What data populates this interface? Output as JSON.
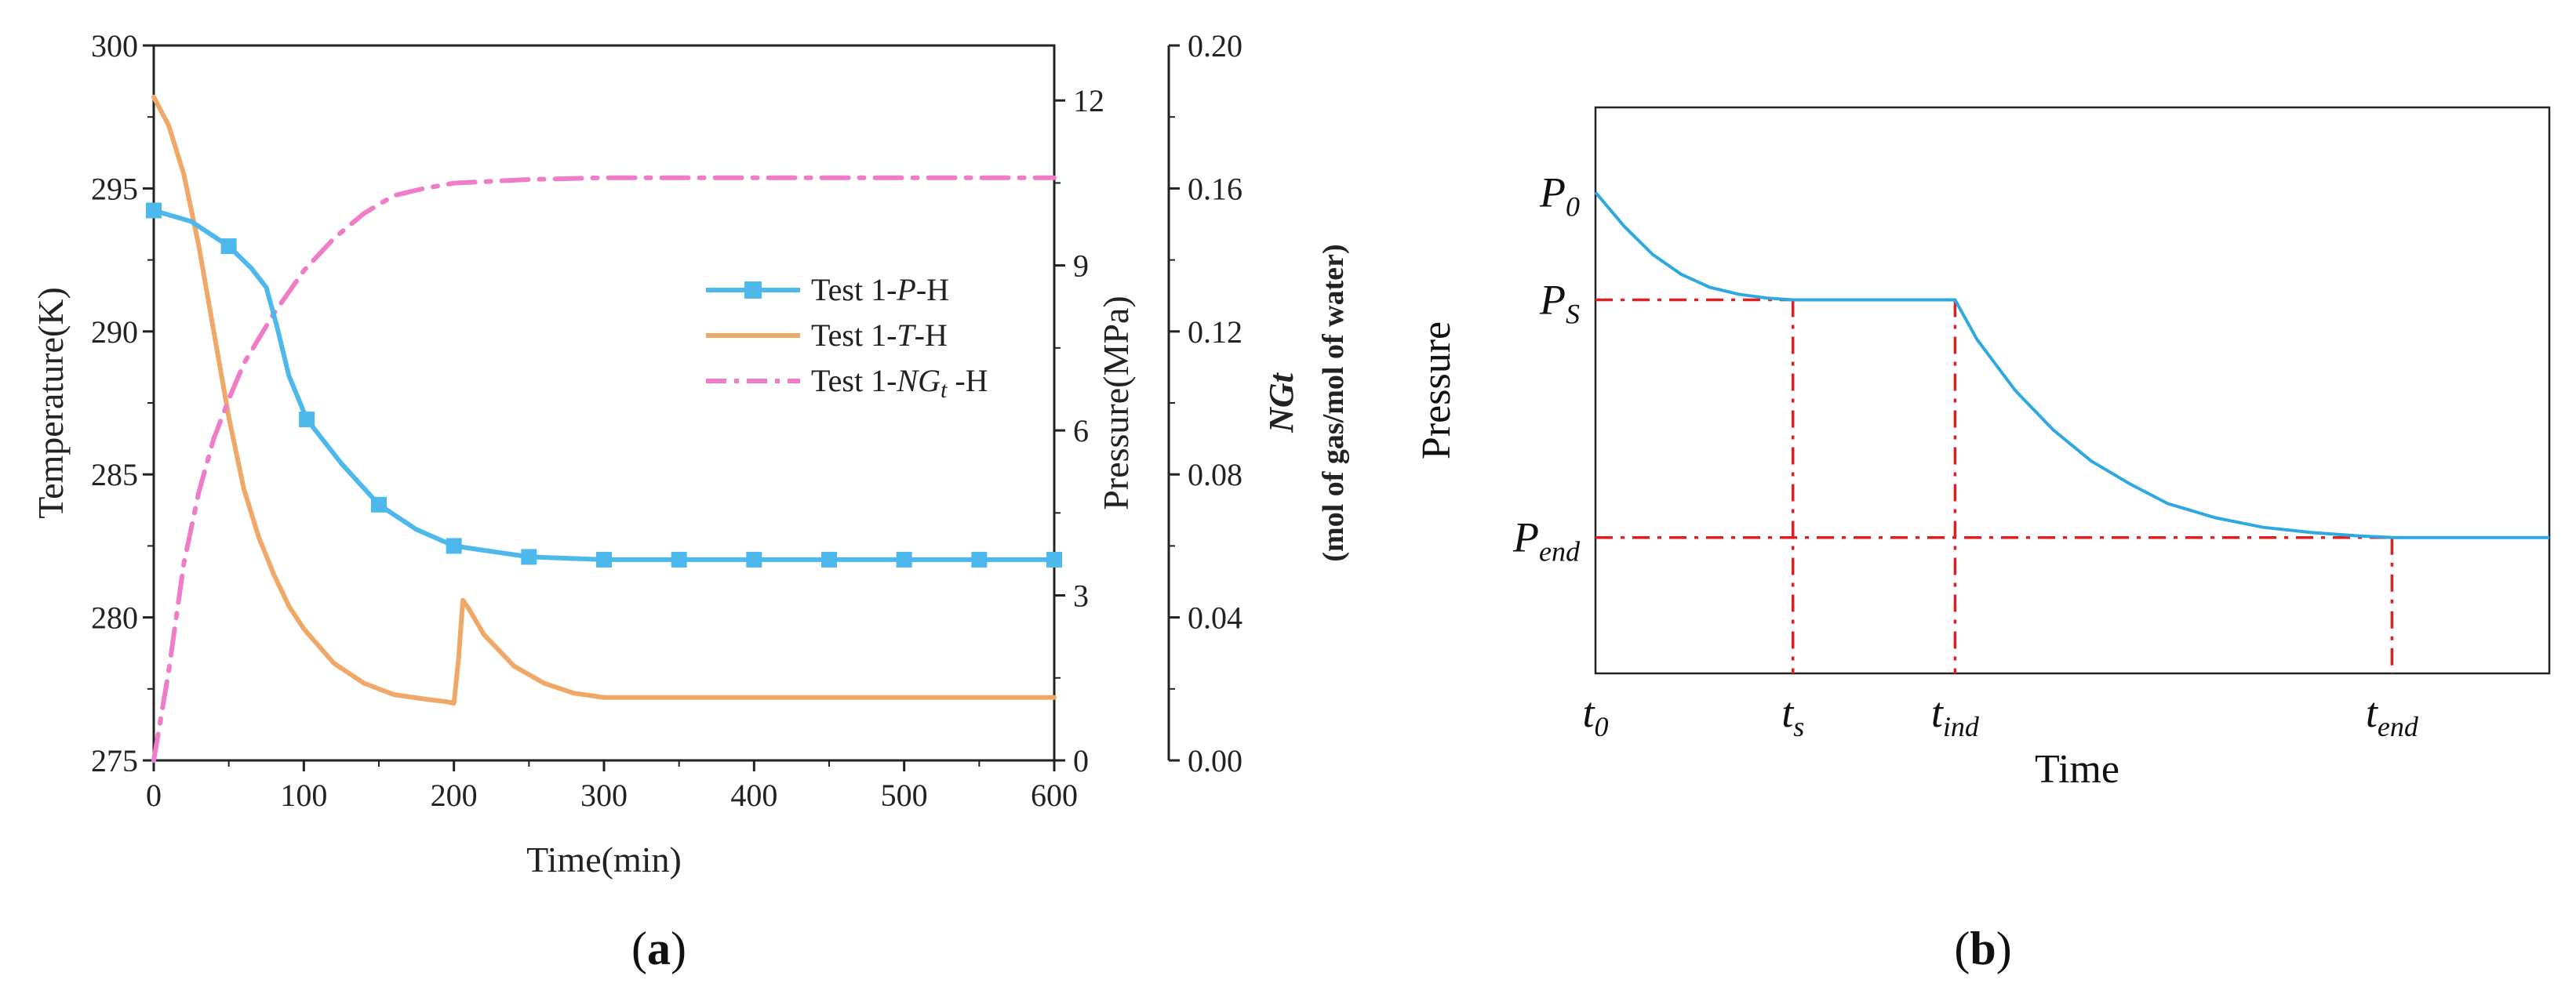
{
  "chart_data": [
    {
      "panel": "a",
      "type": "line",
      "panel_label": "(a)",
      "panel_letter": "a",
      "xlabel": "Time(min)",
      "x_ticks": [
        0,
        100,
        200,
        300,
        400,
        500,
        600
      ],
      "xlim": [
        0,
        600
      ],
      "left_axis": {
        "label": "Temperature(K)",
        "ylim": [
          275,
          300
        ],
        "ticks": [
          275,
          280,
          285,
          290,
          295,
          300
        ]
      },
      "right_axis_1": {
        "label": "Pressure(MPa)",
        "ylim": [
          0,
          13
        ],
        "ticks": [
          0,
          3,
          6,
          9,
          12
        ]
      },
      "right_axis_2": {
        "label_main": "NGt",
        "label_unit": "(mol of gas/mol of water)",
        "ylim": [
          0,
          0.2
        ],
        "ticks": [
          "0.00",
          "0.04",
          "0.08",
          "0.12",
          "0.16",
          "0.20"
        ]
      },
      "series": [
        {
          "name": "Test 1-P-H",
          "legend_prefix": "Test 1-",
          "legend_var": "P",
          "legend_suffix": "-H",
          "axis": "pressure",
          "color": "#4cb8ec",
          "marker": "square",
          "x": [
            0,
            25,
            50,
            65,
            75,
            82,
            90,
            102,
            125,
            150,
            175,
            200,
            250,
            300,
            350,
            400,
            450,
            500,
            550,
            600
          ],
          "y": [
            10.0,
            9.8,
            9.35,
            8.95,
            8.6,
            7.9,
            7.0,
            6.2,
            5.4,
            4.65,
            4.2,
            3.9,
            3.7,
            3.65,
            3.65,
            3.65,
            3.65,
            3.65,
            3.65,
            3.65
          ],
          "marker_x": [
            0,
            50,
            102,
            150,
            200,
            250,
            300,
            350,
            400,
            450,
            500,
            550,
            600
          ]
        },
        {
          "name": "Test 1-T-H",
          "legend_prefix": "Test 1-",
          "legend_var": "T",
          "legend_suffix": "-H",
          "axis": "temperature",
          "color": "#f0a868",
          "x": [
            0,
            10,
            20,
            30,
            40,
            50,
            60,
            70,
            80,
            90,
            100,
            120,
            140,
            160,
            180,
            195,
            200,
            203,
            206,
            210,
            220,
            240,
            260,
            280,
            300,
            350,
            400,
            500,
            600
          ],
          "y": [
            298.2,
            297.2,
            295.5,
            293.0,
            290.0,
            287.0,
            284.5,
            282.8,
            281.5,
            280.4,
            279.6,
            278.4,
            277.7,
            277.3,
            277.15,
            277.05,
            277.0,
            278.5,
            280.6,
            280.3,
            279.4,
            278.3,
            277.7,
            277.35,
            277.2,
            277.2,
            277.2,
            277.2,
            277.2
          ]
        },
        {
          "name": "Test 1-NGt -H",
          "legend_prefix": "Test 1-",
          "legend_var": "NG",
          "legend_sub": "t",
          "legend_suffix": " -H",
          "axis": "ngt",
          "color": "#f07cc8",
          "dash": "dashdot",
          "x": [
            0,
            10,
            20,
            30,
            40,
            50,
            60,
            70,
            80,
            90,
            100,
            120,
            140,
            160,
            180,
            200,
            250,
            300,
            350,
            400,
            500,
            600
          ],
          "y": [
            0.0,
            0.025,
            0.055,
            0.075,
            0.09,
            0.101,
            0.111,
            0.118,
            0.125,
            0.131,
            0.137,
            0.146,
            0.153,
            0.158,
            0.16,
            0.1615,
            0.1625,
            0.163,
            0.163,
            0.163,
            0.163,
            0.163
          ]
        }
      ]
    },
    {
      "panel": "b",
      "type": "line",
      "panel_label": "(b)",
      "panel_letter": "b",
      "xlabel": "Time",
      "ylabel": "Pressure",
      "xlim": [
        0,
        10
      ],
      "ylim": [
        0,
        10
      ],
      "x_markers": [
        {
          "base": "t",
          "sub": "0",
          "x": 0
        },
        {
          "base": "t",
          "sub": "s",
          "x": 2.07
        },
        {
          "base": "t",
          "sub": "ind",
          "x": 3.77
        },
        {
          "base": "t",
          "sub": "end",
          "x": 8.35
        }
      ],
      "y_markers": [
        {
          "base": "P",
          "sub": "0",
          "y": 8.5
        },
        {
          "base": "P",
          "sub": "S",
          "y": 6.6
        },
        {
          "base": "P",
          "sub": "end",
          "y": 2.4
        }
      ],
      "curve_color": "#2ea8e0",
      "guide_color": "#e02020",
      "curve": {
        "x": [
          0,
          0.3,
          0.6,
          0.9,
          1.2,
          1.5,
          1.8,
          2.07,
          2.5,
          3.0,
          3.5,
          3.77,
          4.0,
          4.4,
          4.8,
          5.2,
          5.6,
          6.0,
          6.5,
          7.0,
          7.5,
          8.0,
          8.35,
          9.0,
          10.0
        ],
        "y": [
          8.5,
          7.9,
          7.4,
          7.05,
          6.82,
          6.7,
          6.63,
          6.6,
          6.6,
          6.6,
          6.6,
          6.6,
          5.9,
          5.0,
          4.3,
          3.75,
          3.35,
          3.0,
          2.75,
          2.58,
          2.49,
          2.43,
          2.4,
          2.4,
          2.4
        ]
      }
    }
  ]
}
